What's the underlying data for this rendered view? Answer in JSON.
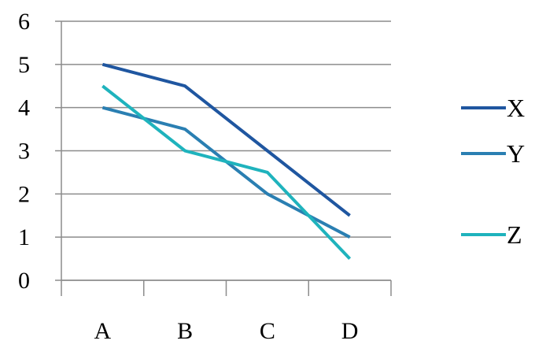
{
  "chart_data": {
    "type": "line",
    "categories": [
      "A",
      "B",
      "C",
      "D"
    ],
    "series": [
      {
        "name": "X",
        "values": [
          5,
          4.5,
          3,
          1.5
        ],
        "color": "#1f56a0"
      },
      {
        "name": "Y",
        "values": [
          4,
          3.5,
          2,
          1
        ],
        "color": "#2a7fb2"
      },
      {
        "name": "Z",
        "values": [
          4.5,
          3,
          2.5,
          0.5
        ],
        "color": "#1fb3bd"
      }
    ],
    "ylim": [
      0,
      6
    ],
    "yticks": [
      0,
      1,
      2,
      3,
      4,
      5,
      6
    ],
    "grid": true,
    "legend_position": "right"
  }
}
